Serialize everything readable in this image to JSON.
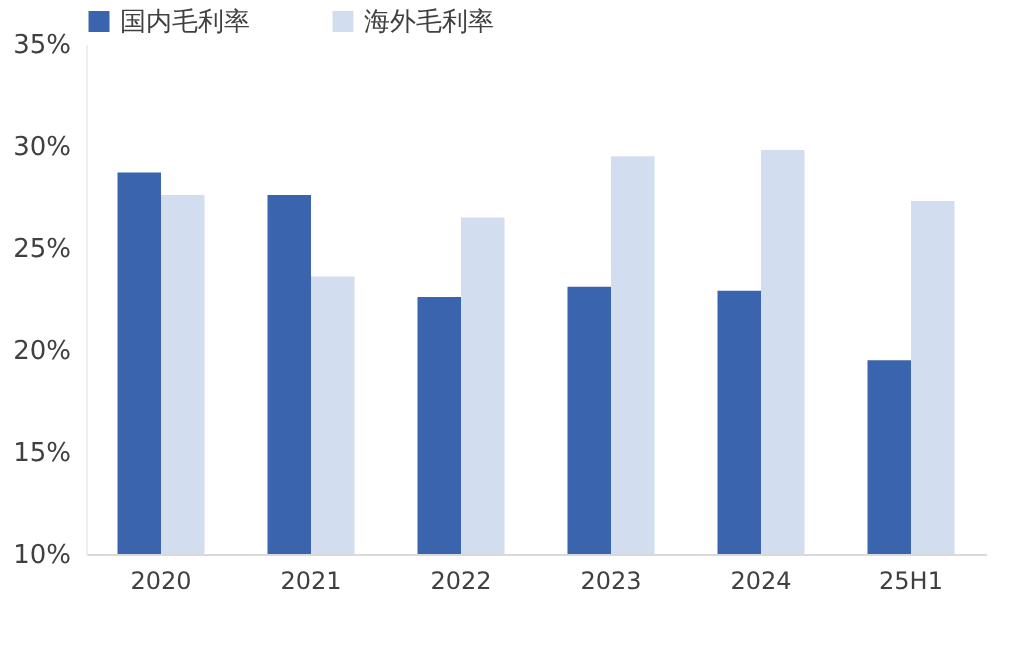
{
  "chart_data": {
    "type": "bar",
    "categories": [
      "2020",
      "2021",
      "2022",
      "2023",
      "2024",
      "25H1"
    ],
    "series": [
      {
        "name": "国内毛利率",
        "color": "#3a64ad",
        "values": [
          28.7,
          27.6,
          22.6,
          23.1,
          22.9,
          19.5
        ]
      },
      {
        "name": "海外毛利率",
        "color": "#d2deef",
        "values": [
          27.6,
          23.6,
          26.5,
          29.5,
          29.8,
          27.3
        ]
      }
    ],
    "ylim": [
      10,
      35
    ],
    "yticks": [
      {
        "value": 10,
        "label": "10%"
      },
      {
        "value": 15,
        "label": "15%"
      },
      {
        "value": 20,
        "label": "20%"
      },
      {
        "value": 25,
        "label": "25%"
      },
      {
        "value": 30,
        "label": "30%"
      },
      {
        "value": 35,
        "label": "35%"
      }
    ],
    "grid": false,
    "legend": "top"
  }
}
